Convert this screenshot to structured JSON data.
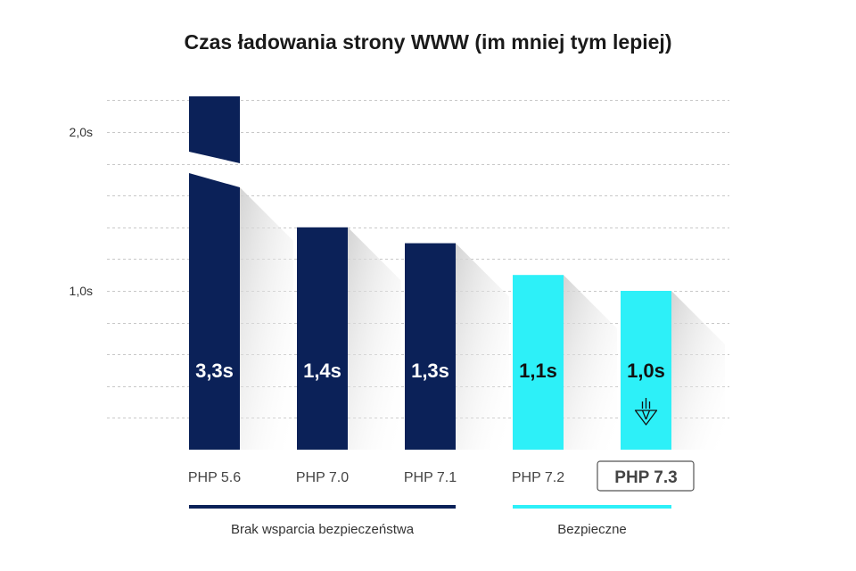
{
  "chart_data": {
    "type": "bar",
    "title": "Czas ładowania strony WWW (im mniej tym lepiej)",
    "categories": [
      "PHP 5.6",
      "PHP 7.0",
      "PHP 7.1",
      "PHP 7.2",
      "PHP 7.3"
    ],
    "values": [
      3.3,
      1.4,
      1.3,
      1.1,
      1.0
    ],
    "value_labels": [
      "3,3s",
      "1,4s",
      "1,3s",
      "1,1s",
      "1,0s"
    ],
    "highlighted_category": "PHP 7.3",
    "y_ticks": [
      {
        "value": 1.0,
        "label": "1,0s"
      },
      {
        "value": 2.0,
        "label": "2,0s"
      }
    ],
    "ylim": [
      0,
      2.2
    ],
    "y_axis_break": true,
    "grid": "dashed-horizontal",
    "groups": [
      {
        "label": "Brak wsparcia bezpieczeństwa",
        "categories": [
          "PHP 5.6",
          "PHP 7.0",
          "PHP 7.1"
        ],
        "color": "#0b2158"
      },
      {
        "label": "Bezpieczne",
        "categories": [
          "PHP 7.2",
          "PHP 7.3"
        ],
        "color": "#2df0f8"
      }
    ],
    "bar_colors": [
      "#0b2158",
      "#0b2158",
      "#0b2158",
      "#2df0f8",
      "#2df0f8"
    ],
    "label_colors": [
      "#ffffff",
      "#ffffff",
      "#ffffff",
      "#111111",
      "#111111"
    ],
    "marker_icon": "rocket-icon"
  }
}
